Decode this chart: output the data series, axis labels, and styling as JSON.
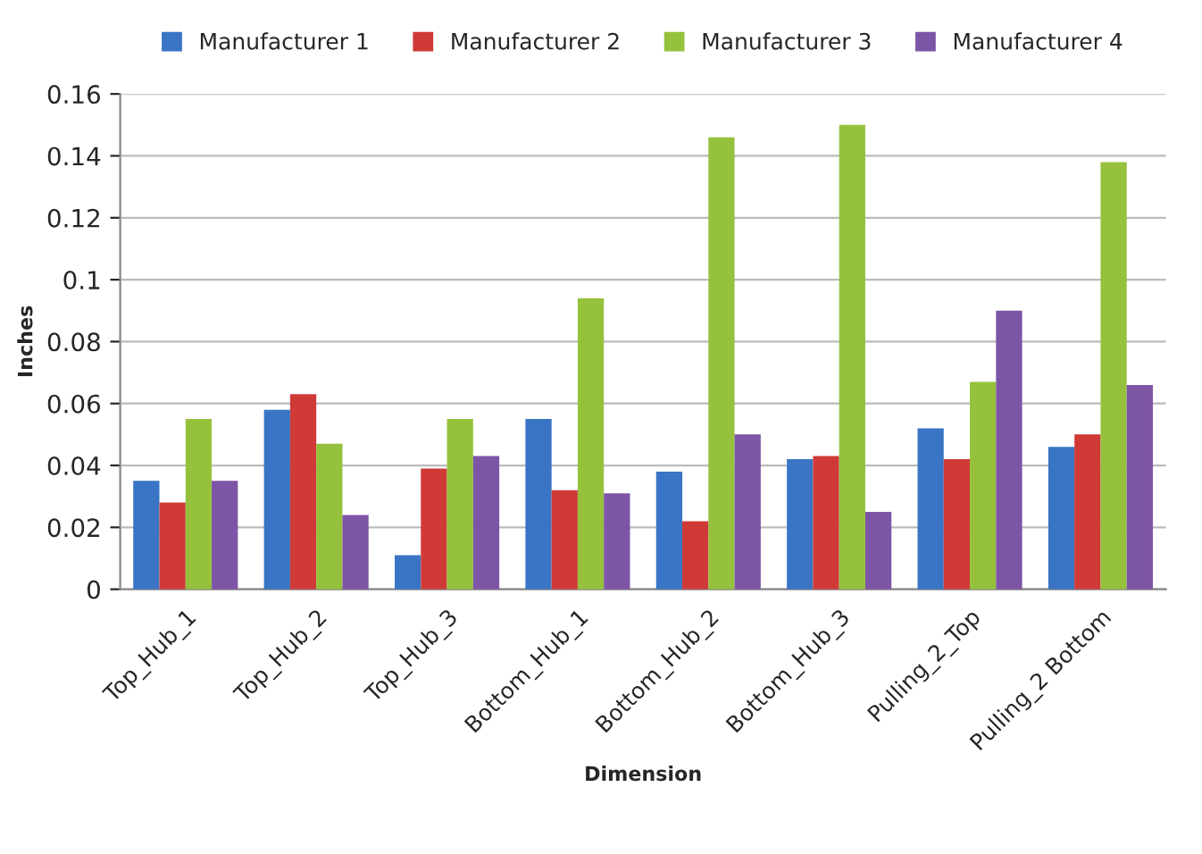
{
  "chart_data": {
    "type": "bar",
    "categories": [
      "Top_Hub_1",
      "Top_Hub_2",
      "Top_Hub_3",
      "Bottom_Hub_1",
      "Bottom_Hub_2",
      "Bottom_Hub_3",
      "Pulling_2_Top",
      "Pulling_2 Bottom"
    ],
    "series": [
      {
        "name": "Manufacturer 1",
        "color": "#3a74c4",
        "values": [
          0.035,
          0.058,
          0.011,
          0.055,
          0.038,
          0.042,
          0.052,
          0.046
        ]
      },
      {
        "name": "Manufacturer 2",
        "color": "#cf3a37",
        "values": [
          0.028,
          0.063,
          0.039,
          0.032,
          0.022,
          0.043,
          0.042,
          0.05
        ]
      },
      {
        "name": "Manufacturer 3",
        "color": "#95c13d",
        "values": [
          0.055,
          0.047,
          0.055,
          0.094,
          0.146,
          0.15,
          0.067,
          0.138
        ]
      },
      {
        "name": "Manufacturer 4",
        "color": "#7d55a6",
        "values": [
          0.035,
          0.024,
          0.043,
          0.031,
          0.05,
          0.025,
          0.09,
          0.066
        ]
      }
    ],
    "xlabel": "Dimension",
    "ylabel": "Inches",
    "ylim": [
      0,
      0.16
    ],
    "yticks": [
      0,
      {
        "value": 0.02,
        "label": "0.02"
      },
      {
        "value": 0.04,
        "label": "0.04"
      },
      {
        "value": 0.06,
        "label": "0.06"
      },
      {
        "value": 0.08,
        "label": "0.08"
      },
      {
        "value": 0.1,
        "label": "0.1"
      },
      {
        "value": 0.12,
        "label": "0.12"
      },
      {
        "value": 0.14,
        "label": "0.14"
      },
      {
        "value": 0.16,
        "label": "0.16"
      }
    ],
    "grid": "y",
    "legend": "top"
  }
}
